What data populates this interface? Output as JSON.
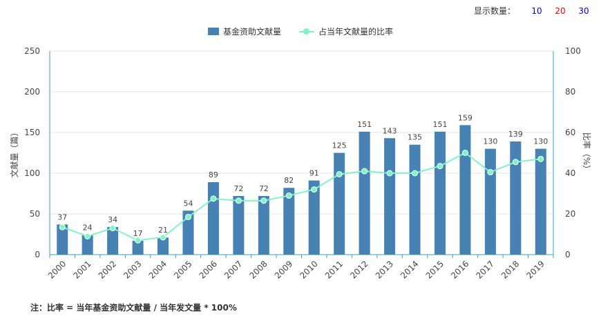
{
  "controls": {
    "label": "显示数量：",
    "options": [
      {
        "text": "10",
        "color": "#0000cc"
      },
      {
        "text": "20",
        "color": "#e60000"
      },
      {
        "text": "30",
        "color": "#0000cc"
      }
    ]
  },
  "legend": {
    "bar_label": "基金资助文献量",
    "line_label": "占当年文献量的比率"
  },
  "note": "注：比率 = 当年基金资助文献量 / 当年发文量 * 100%",
  "colors": {
    "bar": "#4682b4",
    "line": "#7ff5c4",
    "axis": "#3aa0b0",
    "grid": "#e6e6e6",
    "text": "#444444"
  },
  "chart_data": {
    "type": "bar",
    "categories": [
      "2000",
      "2001",
      "2002",
      "2003",
      "2004",
      "2005",
      "2006",
      "2007",
      "2008",
      "2009",
      "2010",
      "2011",
      "2012",
      "2013",
      "2014",
      "2015",
      "2016",
      "2017",
      "2018",
      "2019"
    ],
    "series": [
      {
        "name": "基金资助文献量",
        "type": "bar",
        "axis": "left",
        "values": [
          37,
          24,
          34,
          17,
          21,
          54,
          89,
          72,
          72,
          82,
          91,
          125,
          151,
          143,
          135,
          151,
          159,
          130,
          139,
          130
        ]
      },
      {
        "name": "占当年文献量的比率",
        "type": "line",
        "axis": "right",
        "values": [
          13.5,
          9,
          13,
          7,
          8.5,
          18.5,
          27.5,
          26.5,
          26.5,
          29,
          32,
          39.5,
          41,
          40,
          40,
          43.5,
          50,
          40.5,
          45.5,
          47
        ]
      }
    ],
    "ylabel": "文献量（篇）",
    "y2label": "比率（%）",
    "ylim": [
      0,
      250
    ],
    "y2lim": [
      0,
      100
    ],
    "yticks": [
      0,
      50,
      100,
      150,
      200,
      250
    ],
    "y2ticks": [
      0,
      20,
      40,
      60,
      80,
      100
    ],
    "grid": true,
    "legend_position": "top"
  }
}
